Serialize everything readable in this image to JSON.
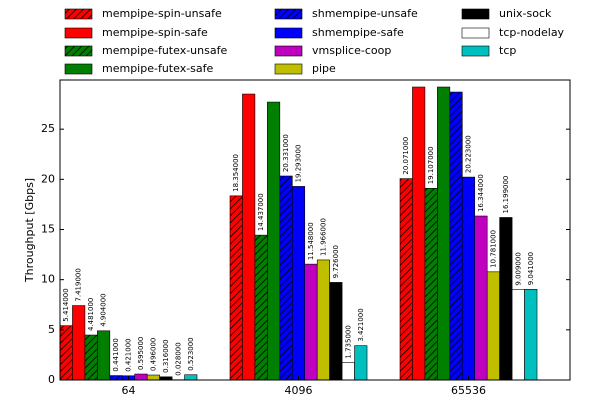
{
  "chart_data": {
    "type": "bar",
    "y_label": "Throughput [Gbps]",
    "categories": [
      "64",
      "4096",
      "65536"
    ],
    "ylim": [
      0,
      29.9
    ],
    "yticks": [
      0,
      5,
      10,
      15,
      20,
      25
    ],
    "series": [
      {
        "name": "mempipe-spin-unsafe",
        "color": "#ff0000",
        "hatch": true,
        "values": [
          5.414,
          18.354,
          20.071
        ],
        "value_labels": [
          "5.414000",
          "18.354000",
          "20.071000"
        ]
      },
      {
        "name": "mempipe-spin-safe",
        "color": "#ff0000",
        "hatch": false,
        "values": [
          7.419,
          28.5,
          29.2
        ],
        "value_labels": [
          "7.419000",
          null,
          null
        ]
      },
      {
        "name": "mempipe-futex-unsafe",
        "color": "#007f00",
        "hatch": true,
        "values": [
          4.481,
          14.437,
          19.107
        ],
        "value_labels": [
          "4.481000",
          "14.437000",
          "19.107000"
        ]
      },
      {
        "name": "mempipe-futex-safe",
        "color": "#007f00",
        "hatch": false,
        "values": [
          4.904,
          27.7,
          29.2
        ],
        "value_labels": [
          "4.904000",
          null,
          null
        ]
      },
      {
        "name": "shmempipe-unsafe",
        "color": "#0000ff",
        "hatch": true,
        "values": [
          0.441,
          20.331,
          28.7
        ],
        "value_labels": [
          "0.441000",
          "20.331000",
          null
        ]
      },
      {
        "name": "shmempipe-safe",
        "color": "#0000ff",
        "hatch": false,
        "values": [
          0.421,
          19.293,
          20.223
        ],
        "value_labels": [
          "0.421000",
          "19.293000",
          "20.223000"
        ]
      },
      {
        "name": "vmsplice-coop",
        "color": "#bf00bf",
        "hatch": false,
        "values": [
          0.595,
          11.548,
          16.344
        ],
        "value_labels": [
          "0.595000",
          "11.548000",
          "16.344000"
        ]
      },
      {
        "name": "pipe",
        "color": "#bfbf00",
        "hatch": false,
        "values": [
          0.496,
          11.966,
          10.781
        ],
        "value_labels": [
          "0.496000",
          "11.966000",
          "10.781000"
        ]
      },
      {
        "name": "unix-sock",
        "color": "#000000",
        "hatch": false,
        "values": [
          0.316,
          9.726,
          16.199
        ],
        "value_labels": [
          "0.316000",
          "9.726000",
          "16.199000"
        ]
      },
      {
        "name": "tcp-nodelay",
        "color": "#ffffff",
        "hatch": false,
        "values": [
          0.028,
          1.735,
          9.009
        ],
        "value_labels": [
          "0.028000",
          "1.735000",
          "9.009000"
        ]
      },
      {
        "name": "tcp",
        "color": "#00bfbf",
        "hatch": false,
        "values": [
          0.523,
          3.421,
          9.041
        ],
        "value_labels": [
          "0.523000",
          "3.421000",
          "9.041000"
        ]
      }
    ]
  }
}
